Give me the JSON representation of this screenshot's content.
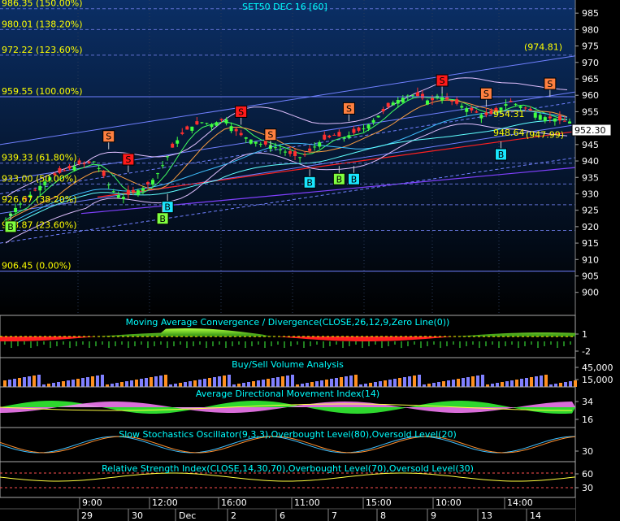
{
  "chart_data": {
    "type": "candlestick",
    "title": "SET50 DEC 16  [60]",
    "last_price": "952.30",
    "main": {
      "ylim": [
        893,
        989
      ],
      "yticks": [
        900,
        905,
        910,
        915,
        920,
        925,
        930,
        935,
        940,
        945,
        950,
        955,
        960,
        965,
        970,
        975,
        980,
        985
      ],
      "fib_levels": [
        {
          "value": 986.35,
          "label": "986.35 (150.00%)"
        },
        {
          "value": 980.01,
          "label": "980.01 (138.20%)"
        },
        {
          "value": 972.22,
          "label": "972.22 (123.60%)"
        },
        {
          "value": 959.55,
          "label": "959.55 (100.00%)"
        },
        {
          "value": 939.33,
          "label": "939.33 (61.80%)"
        },
        {
          "value": 933.0,
          "label": "933.00 (50.00%)"
        },
        {
          "value": 926.67,
          "label": "926.67 (38.20%)"
        },
        {
          "value": 918.87,
          "label": "918.87 (23.60%)"
        },
        {
          "value": 906.45,
          "label": "906.45 (0.00%)"
        }
      ],
      "annotations": [
        {
          "text": "(974.81)",
          "value": 974.81
        },
        {
          "text": "954.31",
          "value": 954.31
        },
        {
          "text": "948.64",
          "value": 948.64
        },
        {
          "text": "(947.99)",
          "value": 947.99
        }
      ],
      "closes": [
        922,
        925,
        927,
        929,
        931,
        933,
        935,
        936,
        937,
        938,
        939,
        939,
        940,
        937,
        933,
        930,
        929,
        930,
        931,
        932,
        934,
        937,
        941,
        945,
        948,
        950,
        951,
        952,
        951,
        952,
        953,
        950,
        948,
        947,
        946,
        945,
        945,
        944,
        943,
        942,
        941,
        942,
        944,
        946,
        947,
        948,
        947,
        948,
        949,
        950,
        952,
        954,
        956,
        958,
        959,
        960,
        960,
        959,
        958,
        960,
        959,
        958,
        957,
        956,
        955,
        954,
        954,
        955,
        957,
        958,
        957,
        956,
        955,
        954,
        953,
        953,
        952,
        952
      ],
      "signals": [
        {
          "type": "S",
          "bar": 21,
          "value": 947.5
        },
        {
          "type": "S",
          "bar": 25,
          "value": 940.5
        },
        {
          "type": "B",
          "bar": 1,
          "value": 920
        },
        {
          "type": "B",
          "bar": 33,
          "value": 926
        },
        {
          "type": "B",
          "bar": 32,
          "value": 922.5
        },
        {
          "type": "S",
          "bar": 48,
          "value": 955
        },
        {
          "type": "S",
          "bar": 54,
          "value": 948
        },
        {
          "type": "B",
          "bar": 62,
          "value": 933.5
        },
        {
          "type": "B",
          "bar": 68,
          "value": 934.5
        },
        {
          "type": "B",
          "bar": 71,
          "value": 934.5
        },
        {
          "type": "S",
          "bar": 70,
          "value": 956
        },
        {
          "type": "S",
          "bar": 89,
          "value": 964.5
        },
        {
          "type": "S",
          "bar": 98,
          "value": 960.5
        },
        {
          "type": "B",
          "bar": 101,
          "value": 942
        },
        {
          "type": "S",
          "bar": 111,
          "value": 963.5
        }
      ]
    },
    "panels": [
      {
        "title": "Moving Average Convergence / Divergence(CLOSE,26,12,9,Zero Line(0))",
        "yticks": [
          "1",
          "-2"
        ]
      },
      {
        "title": "Buy/Sell Volume Analysis",
        "yticks": [
          "45,000",
          "15,000"
        ]
      },
      {
        "title": "Average Directional Movement Index(14)",
        "yticks": [
          "34",
          "16"
        ]
      },
      {
        "title": "Slow Stochastics Oscillator(9,3,3),Overbought Level(80),Oversold Level(20)",
        "yticks": [
          "30"
        ]
      },
      {
        "title": "Relative Strength Index(CLOSE,14,30,70),Overbought Level(70),Oversold Level(30)",
        "yticks": [
          "60",
          "30"
        ]
      }
    ],
    "time_labels": [
      "9:00",
      "12:00",
      "16:00",
      "11:00",
      "15:00",
      "10:00",
      "14:00"
    ],
    "date_labels": [
      "29",
      "30",
      "Dec",
      "2",
      "6",
      "7",
      "8",
      "9",
      "13",
      "14"
    ]
  },
  "colors": {
    "bg_top": "#0b2f66",
    "bg_bottom": "#000000",
    "sell": "#ff1a1a",
    "sell_alt": "#ff8040",
    "buy": "#19e6ff",
    "buy_alt": "#80ff40",
    "label": "#ffff00",
    "title": "#00ffff"
  }
}
